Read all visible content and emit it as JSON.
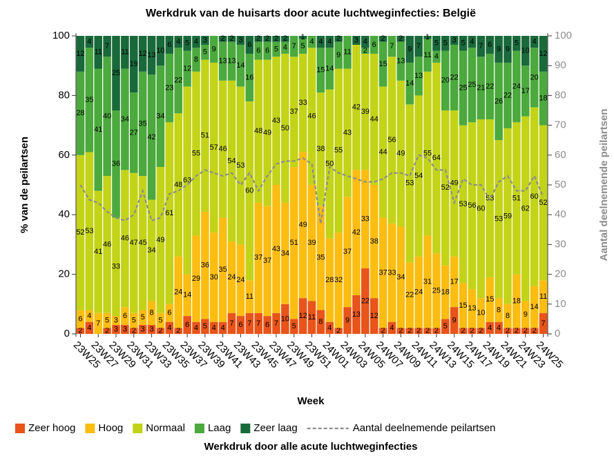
{
  "chart_data": {
    "type": "bar",
    "stacked": true,
    "title": "Werkdruk van de huisarts door acute luchtweginfecties: België",
    "subtitle": "Werkdruk door alle acute luchtweginfecties",
    "xlabel": "Week",
    "ylabel": "% van de peilartsen",
    "y2label": "Aantal deelnemende peilartsen",
    "categories": [
      "23W25",
      null,
      "23W27",
      null,
      "23W29",
      null,
      "23W31",
      null,
      "23W33",
      null,
      "23W35",
      null,
      "23W37",
      null,
      "23W39",
      null,
      "23W41",
      null,
      "23W43",
      null,
      "23W45",
      null,
      "23W47",
      null,
      "23W49",
      null,
      "23W51",
      null,
      "24W01",
      null,
      "24W03",
      null,
      "24W05",
      null,
      "24W07",
      null,
      "24W09",
      null,
      "24W11",
      null,
      "24W13",
      null,
      "24W15",
      null,
      "24W17",
      null,
      "24W19",
      null,
      "24W21",
      null,
      "24W23",
      null,
      "24W25"
    ],
    "series": [
      {
        "name": "Zeer hoog",
        "color": "#e8541a",
        "values": [
          2,
          4,
          0,
          2,
          3,
          3,
          2,
          3,
          3,
          2,
          4,
          2,
          6,
          4,
          5,
          4,
          4,
          7,
          6,
          7,
          7,
          6,
          7,
          10,
          5,
          12,
          11,
          8,
          4,
          2,
          9,
          13,
          22,
          12,
          2,
          4,
          2,
          2,
          2,
          2,
          2,
          5,
          9,
          2,
          2,
          2,
          4,
          4,
          2,
          2,
          2,
          2,
          7
        ]
      },
      {
        "name": "Hoog",
        "color": "#fbbd12",
        "values": [
          6,
          4,
          7,
          5,
          3,
          6,
          5,
          5,
          8,
          5,
          6,
          24,
          14,
          29,
          36,
          30,
          35,
          24,
          24,
          11,
          37,
          37,
          43,
          34,
          51,
          49,
          39,
          35,
          28,
          32,
          37,
          42,
          33,
          38,
          37,
          33,
          34,
          22,
          24,
          31,
          25,
          18,
          17,
          15,
          13,
          10,
          15,
          8,
          8,
          18,
          9,
          14,
          11
        ]
      },
      {
        "name": "Normaal",
        "color": "#c3d318",
        "values": [
          52,
          53,
          41,
          46,
          33,
          46,
          47,
          45,
          34,
          49,
          61,
          48,
          63,
          55,
          51,
          57,
          46,
          54,
          53,
          60,
          48,
          49,
          43,
          50,
          37,
          33,
          46,
          38,
          50,
          55,
          43,
          42,
          39,
          44,
          44,
          56,
          49,
          53,
          54,
          55,
          64,
          52,
          49,
          53,
          56,
          60,
          53,
          53,
          59,
          51,
          62,
          60,
          52
        ]
      },
      {
        "name": "Laag",
        "color": "#4ba93d",
        "values": [
          28,
          35,
          41,
          40,
          36,
          34,
          27,
          35,
          42,
          34,
          23,
          22,
          12,
          8,
          5,
          9,
          13,
          13,
          14,
          16,
          6,
          6,
          5,
          4,
          7,
          5,
          4,
          15,
          14,
          9,
          11,
          0,
          2,
          6,
          15,
          7,
          13,
          14,
          13,
          11,
          4,
          20,
          22,
          25,
          25,
          21,
          22,
          26,
          22,
          24,
          17,
          20,
          18
        ]
      },
      {
        "name": "Zeer laag",
        "color": "#19693a",
        "values": [
          12,
          4,
          11,
          7,
          25,
          11,
          19,
          12,
          13,
          10,
          6,
          4,
          5,
          4,
          3,
          0,
          2,
          2,
          3,
          6,
          2,
          2,
          2,
          2,
          0,
          1,
          0,
          4,
          4,
          2,
          0,
          3,
          4,
          0,
          2,
          0,
          2,
          9,
          7,
          1,
          5,
          5,
          3,
          5,
          4,
          7,
          6,
          9,
          9,
          5,
          10,
          4,
          12
        ]
      },
      {
        "name": "Aantal deelnemende peilartsen",
        "type": "line",
        "axis": "y2",
        "dashed": true,
        "color": "#8c8c8c",
        "values": [
          50,
          45,
          44,
          41,
          39,
          38,
          40,
          48,
          38,
          39,
          47,
          48,
          50,
          53,
          55,
          54,
          53,
          54,
          50,
          54,
          48,
          53,
          57,
          58,
          58,
          59,
          57,
          37,
          56,
          54,
          53,
          52,
          51,
          51,
          52,
          54,
          54,
          53,
          60,
          59,
          55,
          55,
          44,
          52,
          50,
          50,
          45,
          51,
          53,
          48,
          48,
          53,
          46
        ]
      }
    ],
    "ylim": [
      0,
      100
    ],
    "yticks": [
      0,
      20,
      40,
      60,
      80,
      100
    ],
    "y2lim": [
      0,
      100
    ],
    "y2ticks": [
      0,
      10,
      20,
      30,
      40,
      50,
      60,
      70,
      80,
      90,
      100
    ],
    "legend": "bottom"
  }
}
